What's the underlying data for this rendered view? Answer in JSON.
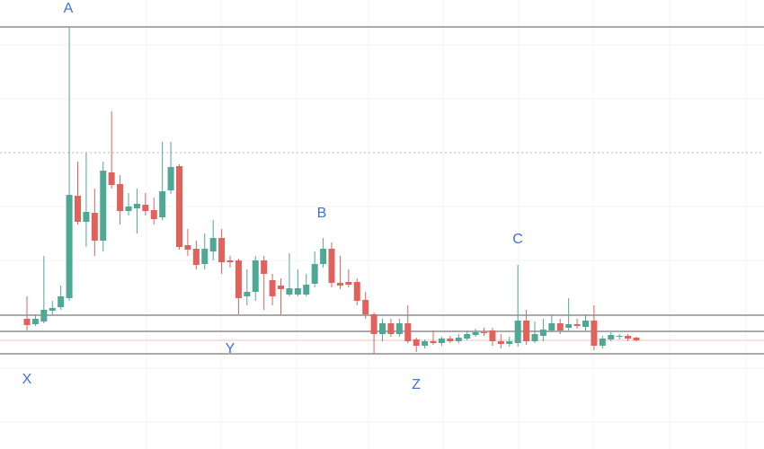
{
  "chart_data": {
    "type": "candlestick",
    "ylim": [
      0,
      500
    ],
    "grid": true,
    "up_color": "#4fa896",
    "down_color": "#e0625c",
    "open": [
      145,
      139,
      142,
      154,
      158,
      168,
      282,
      253,
      263,
      232,
      308,
      295,
      265,
      268,
      272,
      266,
      258,
      288,
      315,
      227,
      223,
      206,
      220,
      235,
      210,
      210,
      170,
      175,
      210,
      188,
      182,
      172,
      172,
      172,
      184,
      206,
      223,
      185,
      186,
      186,
      166,
      150,
      128,
      140,
      128,
      140,
      122,
      115,
      120,
      118,
      123,
      120,
      123,
      127,
      130,
      132,
      120,
      117,
      118,
      143,
      120,
      126,
      132,
      140,
      135,
      139,
      136,
      143,
      115,
      122,
      125,
      126,
      124
    ],
    "high": [
      170,
      150,
      215,
      165,
      182,
      470,
      320,
      330,
      290,
      320,
      376,
      305,
      285,
      290,
      285,
      280,
      342,
      342,
      317,
      245,
      232,
      240,
      255,
      245,
      215,
      212,
      200,
      215,
      215,
      195,
      190,
      218,
      200,
      195,
      220,
      235,
      230,
      215,
      200,
      190,
      175,
      152,
      145,
      145,
      145,
      160,
      124,
      122,
      132,
      125,
      126,
      128,
      132,
      134,
      135,
      135,
      128,
      125,
      205,
      155,
      142,
      145,
      150,
      145,
      168,
      145,
      150,
      160,
      126,
      130,
      128,
      128,
      125
    ],
    "low": [
      132,
      137,
      140,
      150,
      155,
      165,
      250,
      225,
      215,
      220,
      290,
      250,
      260,
      240,
      260,
      250,
      255,
      284,
      222,
      215,
      200,
      200,
      210,
      195,
      202,
      150,
      160,
      165,
      155,
      160,
      150,
      170,
      170,
      170,
      180,
      202,
      180,
      178,
      180,
      160,
      145,
      106,
      120,
      125,
      125,
      118,
      108,
      112,
      116,
      115,
      118,
      118,
      121,
      125,
      126,
      115,
      112,
      114,
      114,
      116,
      118,
      120,
      130,
      128,
      132,
      134,
      132,
      110,
      112,
      120,
      122,
      120,
      120
    ],
    "close": [
      138,
      145,
      155,
      157,
      170,
      283,
      253,
      264,
      232,
      310,
      294,
      265,
      270,
      273,
      265,
      256,
      287,
      314,
      225,
      222,
      205,
      223,
      235,
      208,
      208,
      168,
      175,
      210,
      195,
      170,
      178,
      179,
      179,
      183,
      206,
      223,
      185,
      182,
      183,
      165,
      150,
      128,
      140,
      128,
      140,
      120,
      115,
      120,
      118,
      123,
      120,
      124,
      128,
      130,
      129,
      120,
      117,
      120,
      143,
      120,
      128,
      133,
      140,
      132,
      139,
      137,
      143,
      115,
      123,
      127,
      126,
      123,
      121
    ],
    "levels": [
      470,
      149,
      131,
      106
    ],
    "dotted_levels": [
      330
    ],
    "price_line": 121,
    "annotations": [
      "A",
      "B",
      "C",
      "X",
      "Y",
      "Z"
    ]
  }
}
